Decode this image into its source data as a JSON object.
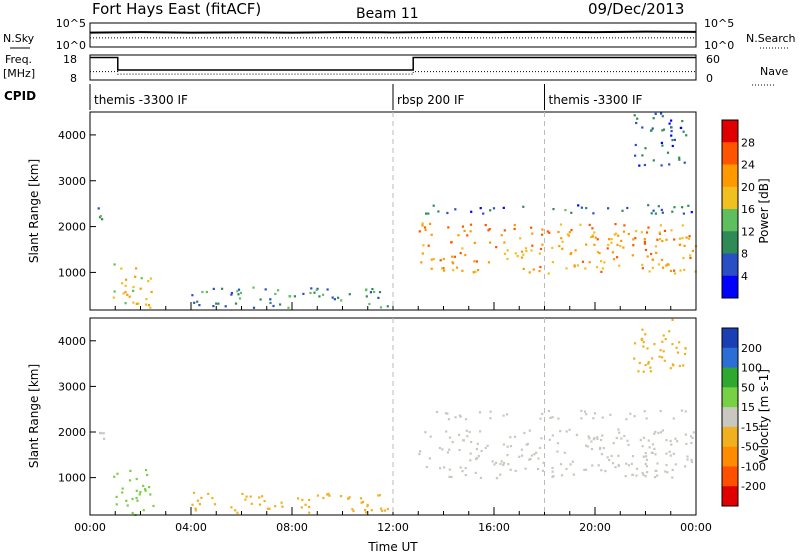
{
  "header": {
    "station": "Fort Hays East (fitACF)",
    "beam": "Beam 11",
    "date": "09/Dec/2013"
  },
  "left_labels": {
    "nsky": "N.Sky",
    "freq_line1": "Freq.",
    "freq_line2": "[MHz]",
    "cpid": "CPID"
  },
  "right_labels": {
    "nsearch": "N.Search",
    "nave": "Nave"
  },
  "noise_panel": {
    "left_ticks": [
      "10^5",
      "10^0"
    ],
    "right_ticks": [
      "10^5",
      "10^0"
    ]
  },
  "freq_panel": {
    "left_ticks": [
      "18",
      "8"
    ],
    "right_ticks": [
      "60",
      "0"
    ]
  },
  "cpid": [
    {
      "label": "themis -3300 IF",
      "start_hour": 0
    },
    {
      "label": "rbsp 200 IF",
      "start_hour": 12
    },
    {
      "label": "themis -3300 IF",
      "start_hour": 18
    }
  ],
  "colors": {
    "power": [
      "#0000ff",
      "#2a4fc4",
      "#2e8b57",
      "#5fbf5f",
      "#f0c020",
      "#ff9900",
      "#ff5500",
      "#e00000"
    ],
    "velocity": [
      "#1a3fb5",
      "#2b6fd6",
      "#2ea82e",
      "#78d044",
      "#c8c8c0",
      "#f0b020",
      "#ff8c00",
      "#ff5000",
      "#e00000"
    ],
    "ground": "#c8c8c0"
  },
  "chart_data": [
    {
      "type": "line",
      "name": "noise",
      "xlim": [
        0,
        24
      ],
      "series": [
        {
          "name": "N.Sky",
          "style": "solid",
          "x": [
            0,
            2,
            4,
            6,
            8,
            10,
            12,
            14,
            16,
            18,
            20,
            22,
            24
          ],
          "y_frac": [
            0.6,
            0.62,
            0.6,
            0.61,
            0.6,
            0.62,
            0.61,
            0.63,
            0.62,
            0.63,
            0.62,
            0.64,
            0.63
          ]
        },
        {
          "name": "N.Search",
          "style": "dotted",
          "x": [
            0,
            24
          ],
          "y_frac": [
            0.38,
            0.38
          ]
        }
      ]
    },
    {
      "type": "line",
      "name": "freq-nave",
      "xlim": [
        0,
        24
      ],
      "series": [
        {
          "name": "Freq.",
          "style": "solid",
          "x": [
            0,
            1.1,
            1.1,
            12.8,
            12.8,
            24
          ],
          "y": [
            17,
            17,
            12,
            12,
            17,
            17
          ],
          "ylim": [
            8,
            18
          ]
        },
        {
          "name": "Nave",
          "style": "dotted",
          "x": [
            0,
            1.1,
            1.1,
            12.8,
            12.8,
            24
          ],
          "y": [
            20,
            20,
            14,
            14,
            20,
            20
          ],
          "ylim": [
            0,
            60
          ]
        }
      ]
    },
    {
      "type": "heatmap",
      "name": "power",
      "title": "",
      "xlabel": "",
      "ylabel": "Slant Range [km]",
      "xlim": [
        0,
        24
      ],
      "ylim": [
        180,
        4500
      ],
      "yticks": [
        1000,
        2000,
        3000,
        4000
      ],
      "colorbar": {
        "label": "Power [dB]",
        "ticks": [
          "4",
          "8",
          "12",
          "16",
          "20",
          "24",
          "28"
        ],
        "range": [
          0,
          32
        ]
      },
      "regions": [
        {
          "x": [
            0.3,
            0.55
          ],
          "y": [
            1500,
            2500
          ],
          "value": 10
        },
        {
          "x": [
            0.8,
            2.5
          ],
          "y": [
            200,
            1200
          ],
          "value": 18
        },
        {
          "x": [
            4.0,
            11.8
          ],
          "y": [
            250,
            700
          ],
          "value": 10
        },
        {
          "x": [
            13.0,
            24.0
          ],
          "y": [
            1000,
            2100
          ],
          "value": 22
        },
        {
          "x": [
            13.2,
            24.0
          ],
          "y": [
            2300,
            2500
          ],
          "value": 8
        },
        {
          "x": [
            21.5,
            23.6
          ],
          "y": [
            3300,
            4500
          ],
          "value": 7
        }
      ]
    },
    {
      "type": "heatmap",
      "name": "velocity",
      "title": "",
      "xlabel": "Time UT",
      "ylabel": "Slant Range [km]",
      "xlim": [
        0,
        24
      ],
      "ylim": [
        180,
        4500
      ],
      "xticks": [
        "00:00",
        "04:00",
        "08:00",
        "12:00",
        "16:00",
        "20:00",
        "00:00"
      ],
      "yticks": [
        1000,
        2000,
        3000,
        4000
      ],
      "colorbar": {
        "label": "Velocity [m s-1]",
        "ticks": [
          "200",
          "100",
          "50",
          "15",
          "-15",
          "-50",
          "-100",
          "-200"
        ],
        "range": [
          -250,
          250
        ]
      },
      "regions": [
        {
          "x": [
            0.3,
            0.55
          ],
          "y": [
            1500,
            2500
          ],
          "value": 0
        },
        {
          "x": [
            0.8,
            2.5
          ],
          "y": [
            200,
            1200
          ],
          "value": 40
        },
        {
          "x": [
            4.0,
            11.8
          ],
          "y": [
            250,
            700
          ],
          "value": -50
        },
        {
          "x": [
            13.0,
            24.0
          ],
          "y": [
            1000,
            2100
          ],
          "value": 0
        },
        {
          "x": [
            13.2,
            24.0
          ],
          "y": [
            2300,
            2500
          ],
          "value": 0
        },
        {
          "x": [
            21.5,
            23.6
          ],
          "y": [
            3300,
            4500
          ],
          "value": -40
        }
      ]
    }
  ]
}
